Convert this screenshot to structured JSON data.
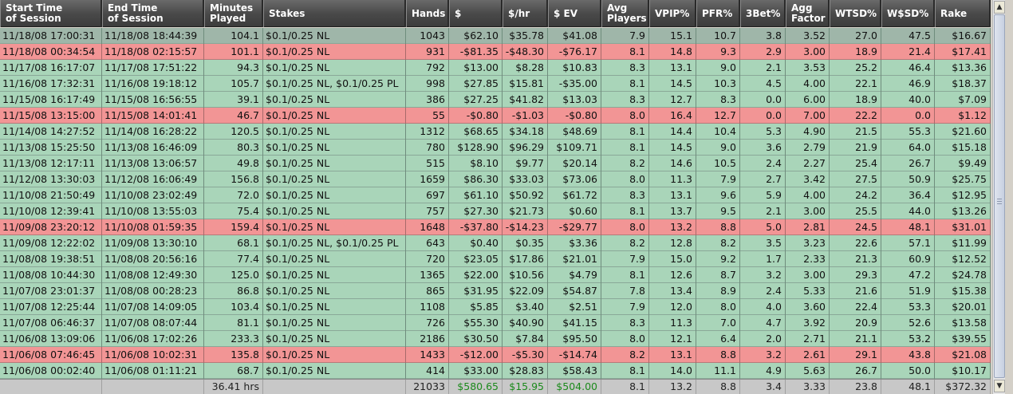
{
  "columns": [
    {
      "key": "start",
      "label": "Start Time\nof Session",
      "align": "l"
    },
    {
      "key": "end",
      "label": "End Time\nof Session",
      "align": "l"
    },
    {
      "key": "minutes",
      "label": "Minutes\nPlayed",
      "align": "r"
    },
    {
      "key": "stakes",
      "label": "Stakes",
      "align": "l"
    },
    {
      "key": "hands",
      "label": "Hands",
      "align": "r"
    },
    {
      "key": "dollars",
      "label": "$",
      "align": "r"
    },
    {
      "key": "per_hr",
      "label": "$/hr",
      "align": "r"
    },
    {
      "key": "ev",
      "label": "$ EV",
      "align": "r"
    },
    {
      "key": "avg_players",
      "label": "Avg\nPlayers",
      "align": "r"
    },
    {
      "key": "vpip",
      "label": "VPIP%",
      "align": "r"
    },
    {
      "key": "pfr",
      "label": "PFR%",
      "align": "r"
    },
    {
      "key": "bet3",
      "label": "3Bet%",
      "align": "r"
    },
    {
      "key": "agg",
      "label": "Agg\nFactor",
      "align": "r"
    },
    {
      "key": "wtsd",
      "label": "WTSD%",
      "align": "r"
    },
    {
      "key": "wsd",
      "label": "W$SD%",
      "align": "r"
    },
    {
      "key": "rake",
      "label": "Rake",
      "align": "r"
    }
  ],
  "rows": [
    {
      "state": "selected",
      "cells": [
        "11/18/08 17:00:31",
        "11/18/08 18:44:39",
        "104.1",
        "$0.1/0.25 NL",
        "1043",
        "$62.10",
        "$35.78",
        "$41.08",
        "7.9",
        "15.1",
        "10.7",
        "3.8",
        "3.52",
        "27.0",
        "47.5",
        "$16.67"
      ]
    },
    {
      "state": "loss",
      "cells": [
        "11/18/08 00:34:54",
        "11/18/08 02:15:57",
        "101.1",
        "$0.1/0.25 NL",
        "931",
        "-$81.35",
        "-$48.30",
        "-$76.17",
        "8.1",
        "14.8",
        "9.3",
        "2.9",
        "3.00",
        "18.9",
        "21.4",
        "$17.41"
      ]
    },
    {
      "state": "win",
      "cells": [
        "11/17/08 16:17:07",
        "11/17/08 17:51:22",
        "94.3",
        "$0.1/0.25 NL",
        "792",
        "$13.00",
        "$8.28",
        "$10.83",
        "8.3",
        "13.1",
        "9.0",
        "2.1",
        "3.53",
        "25.2",
        "46.4",
        "$13.36"
      ]
    },
    {
      "state": "win",
      "cells": [
        "11/16/08 17:32:31",
        "11/16/08 19:18:12",
        "105.7",
        "$0.1/0.25 NL, $0.1/0.25 PL",
        "998",
        "$27.85",
        "$15.81",
        "-$35.00",
        "8.1",
        "14.5",
        "10.3",
        "4.5",
        "4.00",
        "22.1",
        "46.9",
        "$18.37"
      ]
    },
    {
      "state": "win",
      "cells": [
        "11/15/08 16:17:49",
        "11/15/08 16:56:55",
        "39.1",
        "$0.1/0.25 NL",
        "386",
        "$27.25",
        "$41.82",
        "$13.03",
        "8.3",
        "12.7",
        "8.3",
        "0.0",
        "6.00",
        "18.9",
        "40.0",
        "$7.09"
      ]
    },
    {
      "state": "loss",
      "cells": [
        "11/15/08 13:15:00",
        "11/15/08 14:01:41",
        "46.7",
        "$0.1/0.25 NL",
        "55",
        "-$0.80",
        "-$1.03",
        "-$0.80",
        "8.0",
        "16.4",
        "12.7",
        "0.0",
        "7.00",
        "22.2",
        "0.0",
        "$1.12"
      ]
    },
    {
      "state": "win",
      "cells": [
        "11/14/08 14:27:52",
        "11/14/08 16:28:22",
        "120.5",
        "$0.1/0.25 NL",
        "1312",
        "$68.65",
        "$34.18",
        "$48.69",
        "8.1",
        "14.4",
        "10.4",
        "5.3",
        "4.90",
        "21.5",
        "55.3",
        "$21.60"
      ]
    },
    {
      "state": "win",
      "cells": [
        "11/13/08 15:25:50",
        "11/13/08 16:46:09",
        "80.3",
        "$0.1/0.25 NL",
        "780",
        "$128.90",
        "$96.29",
        "$109.71",
        "8.1",
        "14.5",
        "9.0",
        "3.6",
        "2.79",
        "21.9",
        "64.0",
        "$15.18"
      ]
    },
    {
      "state": "win",
      "cells": [
        "11/13/08 12:17:11",
        "11/13/08 13:06:57",
        "49.8",
        "$0.1/0.25 NL",
        "515",
        "$8.10",
        "$9.77",
        "$20.14",
        "8.2",
        "14.6",
        "10.5",
        "2.4",
        "2.27",
        "25.4",
        "26.7",
        "$9.49"
      ]
    },
    {
      "state": "win",
      "cells": [
        "11/12/08 13:30:03",
        "11/12/08 16:06:49",
        "156.8",
        "$0.1/0.25 NL",
        "1659",
        "$86.30",
        "$33.03",
        "$73.06",
        "8.0",
        "11.3",
        "7.9",
        "2.7",
        "3.42",
        "27.5",
        "50.9",
        "$25.75"
      ]
    },
    {
      "state": "win",
      "cells": [
        "11/10/08 21:50:49",
        "11/10/08 23:02:49",
        "72.0",
        "$0.1/0.25 NL",
        "697",
        "$61.10",
        "$50.92",
        "$61.72",
        "8.3",
        "13.1",
        "9.6",
        "5.9",
        "4.00",
        "24.2",
        "36.4",
        "$12.95"
      ]
    },
    {
      "state": "win",
      "cells": [
        "11/10/08 12:39:41",
        "11/10/08 13:55:03",
        "75.4",
        "$0.1/0.25 NL",
        "757",
        "$27.30",
        "$21.73",
        "$0.60",
        "8.1",
        "13.7",
        "9.5",
        "2.1",
        "3.00",
        "25.5",
        "44.0",
        "$13.26"
      ]
    },
    {
      "state": "loss",
      "cells": [
        "11/09/08 23:20:12",
        "11/10/08 01:59:35",
        "159.4",
        "$0.1/0.25 NL",
        "1648",
        "-$37.80",
        "-$14.23",
        "-$29.77",
        "8.0",
        "13.2",
        "8.8",
        "5.0",
        "2.81",
        "24.5",
        "48.1",
        "$31.01"
      ]
    },
    {
      "state": "win",
      "cells": [
        "11/09/08 12:22:02",
        "11/09/08 13:30:10",
        "68.1",
        "$0.1/0.25 NL, $0.1/0.25 PL",
        "643",
        "$0.40",
        "$0.35",
        "$3.36",
        "8.2",
        "12.8",
        "8.2",
        "3.5",
        "3.23",
        "22.6",
        "57.1",
        "$11.99"
      ]
    },
    {
      "state": "win",
      "cells": [
        "11/08/08 19:38:51",
        "11/08/08 20:56:16",
        "77.4",
        "$0.1/0.25 NL",
        "720",
        "$23.05",
        "$17.86",
        "$21.01",
        "7.9",
        "15.0",
        "9.2",
        "1.7",
        "2.33",
        "21.3",
        "60.9",
        "$12.52"
      ]
    },
    {
      "state": "win",
      "cells": [
        "11/08/08 10:44:30",
        "11/08/08 12:49:30",
        "125.0",
        "$0.1/0.25 NL",
        "1365",
        "$22.00",
        "$10.56",
        "$4.79",
        "8.1",
        "12.6",
        "8.7",
        "3.2",
        "3.00",
        "29.3",
        "47.2",
        "$24.78"
      ]
    },
    {
      "state": "win",
      "cells": [
        "11/07/08 23:01:37",
        "11/08/08 00:28:23",
        "86.8",
        "$0.1/0.25 NL",
        "865",
        "$31.95",
        "$22.09",
        "$54.87",
        "7.8",
        "13.4",
        "8.9",
        "2.4",
        "5.33",
        "21.6",
        "51.9",
        "$15.38"
      ]
    },
    {
      "state": "win",
      "cells": [
        "11/07/08 12:25:44",
        "11/07/08 14:09:05",
        "103.4",
        "$0.1/0.25 NL",
        "1108",
        "$5.85",
        "$3.40",
        "$2.51",
        "7.9",
        "12.0",
        "8.0",
        "4.0",
        "3.60",
        "22.4",
        "53.3",
        "$20.01"
      ]
    },
    {
      "state": "win",
      "cells": [
        "11/07/08 06:46:37",
        "11/07/08 08:07:44",
        "81.1",
        "$0.1/0.25 NL",
        "726",
        "$55.30",
        "$40.90",
        "$41.15",
        "8.3",
        "11.3",
        "7.0",
        "4.7",
        "3.92",
        "20.9",
        "52.6",
        "$13.58"
      ]
    },
    {
      "state": "win",
      "cells": [
        "11/06/08 13:09:06",
        "11/06/08 17:02:26",
        "233.3",
        "$0.1/0.25 NL",
        "2186",
        "$30.50",
        "$7.84",
        "$95.50",
        "8.0",
        "12.1",
        "6.4",
        "2.0",
        "2.71",
        "21.1",
        "53.2",
        "$39.55"
      ]
    },
    {
      "state": "loss",
      "cells": [
        "11/06/08 07:46:45",
        "11/06/08 10:02:31",
        "135.8",
        "$0.1/0.25 NL",
        "1433",
        "-$12.00",
        "-$5.30",
        "-$14.74",
        "8.2",
        "13.1",
        "8.8",
        "3.2",
        "2.61",
        "29.1",
        "43.8",
        "$21.08"
      ]
    },
    {
      "state": "win",
      "cells": [
        "11/06/08 00:02:40",
        "11/06/08 01:11:21",
        "68.7",
        "$0.1/0.25 NL",
        "414",
        "$33.00",
        "$28.83",
        "$58.43",
        "8.1",
        "14.0",
        "11.1",
        "4.9",
        "5.63",
        "26.7",
        "50.0",
        "$10.17"
      ]
    }
  ],
  "totals": [
    "",
    "",
    "36.41 hrs",
    "",
    "21033",
    "$580.65",
    "$15.95",
    "$504.00",
    "8.1",
    "13.2",
    "8.8",
    "3.4",
    "3.33",
    "23.8",
    "48.1",
    "$372.32"
  ],
  "colors": {
    "header_bg": "#4a4a4a",
    "win_row": "#a9d5b9",
    "loss_row": "#f29595",
    "selected_row": "#9fb6a9",
    "totals_money": "#1c8a1c"
  },
  "scrollbar": {
    "up_icon": "arrow-up-icon",
    "down_icon": "arrow-down-icon"
  }
}
